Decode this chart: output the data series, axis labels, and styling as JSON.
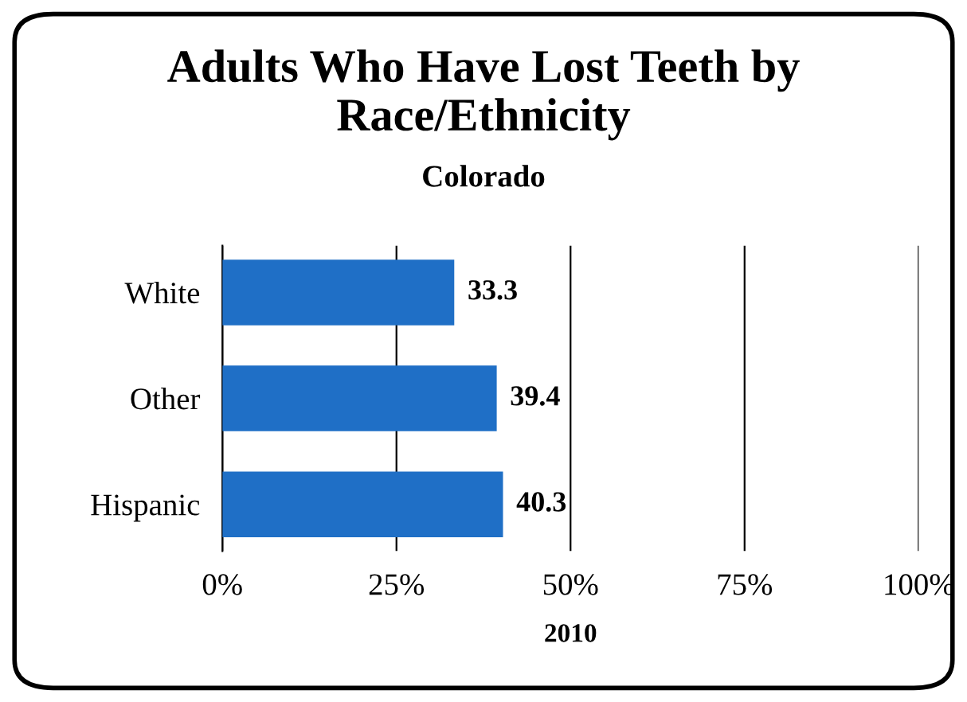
{
  "chart_data": {
    "type": "bar",
    "orientation": "horizontal",
    "title": "Adults Who Have Lost Teeth by\nRace/Ethnicity",
    "subtitle": "Colorado",
    "xlabel": "2010",
    "categories": [
      "White",
      "Other",
      "Hispanic"
    ],
    "values": [
      33.3,
      39.4,
      40.3
    ],
    "color": "#1f6fc6",
    "data_labels": true,
    "xlim": [
      0,
      100
    ],
    "xticks": [
      {
        "value": 0,
        "label": "0%"
      },
      {
        "value": 25,
        "label": "25%"
      },
      {
        "value": 50,
        "label": "50%"
      },
      {
        "value": 75,
        "label": "75%"
      },
      {
        "value": 100,
        "label": "100%"
      }
    ],
    "grid": "x",
    "legend": false
  }
}
